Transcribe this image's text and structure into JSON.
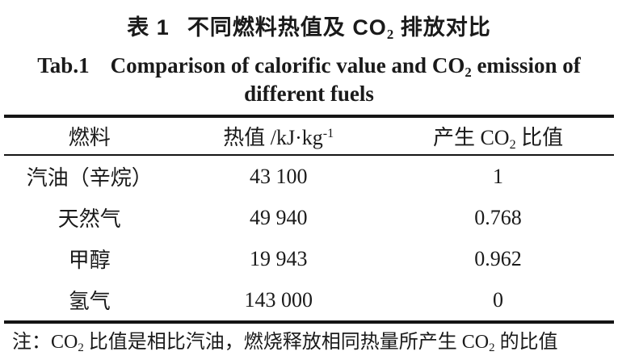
{
  "page": {
    "background": "#ffffff",
    "text_color": "#1a1a1a",
    "rule_color": "#151515"
  },
  "title_zh": {
    "label": "表 1",
    "pre": "不同燃料热值及 CO",
    "sub": "2",
    "post": " 排放对比"
  },
  "title_en": {
    "label": "Tab.1",
    "line1_pre": "Comparison of calorific value and CO",
    "sub": "2",
    "line1_post": " emission of",
    "line2": "different fuels"
  },
  "table": {
    "columns": [
      {
        "header": "燃料"
      },
      {
        "header_pre": "热值 /kJ·kg",
        "header_sup": "-1"
      },
      {
        "header_pre": "产生 CO",
        "header_sub": "2",
        "header_post": " 比值"
      }
    ],
    "rows": [
      {
        "fuel": "汽油（辛烷）",
        "calorific_value": "43 100",
        "co2_ratio": "1"
      },
      {
        "fuel": "天然气",
        "calorific_value": "49 940",
        "co2_ratio": "0.768"
      },
      {
        "fuel": "甲醇",
        "calorific_value": "19 943",
        "co2_ratio": "0.962"
      },
      {
        "fuel": "氢气",
        "calorific_value": "143 000",
        "co2_ratio": "0"
      }
    ]
  },
  "note": {
    "label": "注：",
    "seg1": "CO",
    "sub1": "2",
    "seg2": " 比值是相比汽油，燃烧释放相同热量所产生 CO",
    "sub2": "2",
    "seg3": " 的比值"
  }
}
